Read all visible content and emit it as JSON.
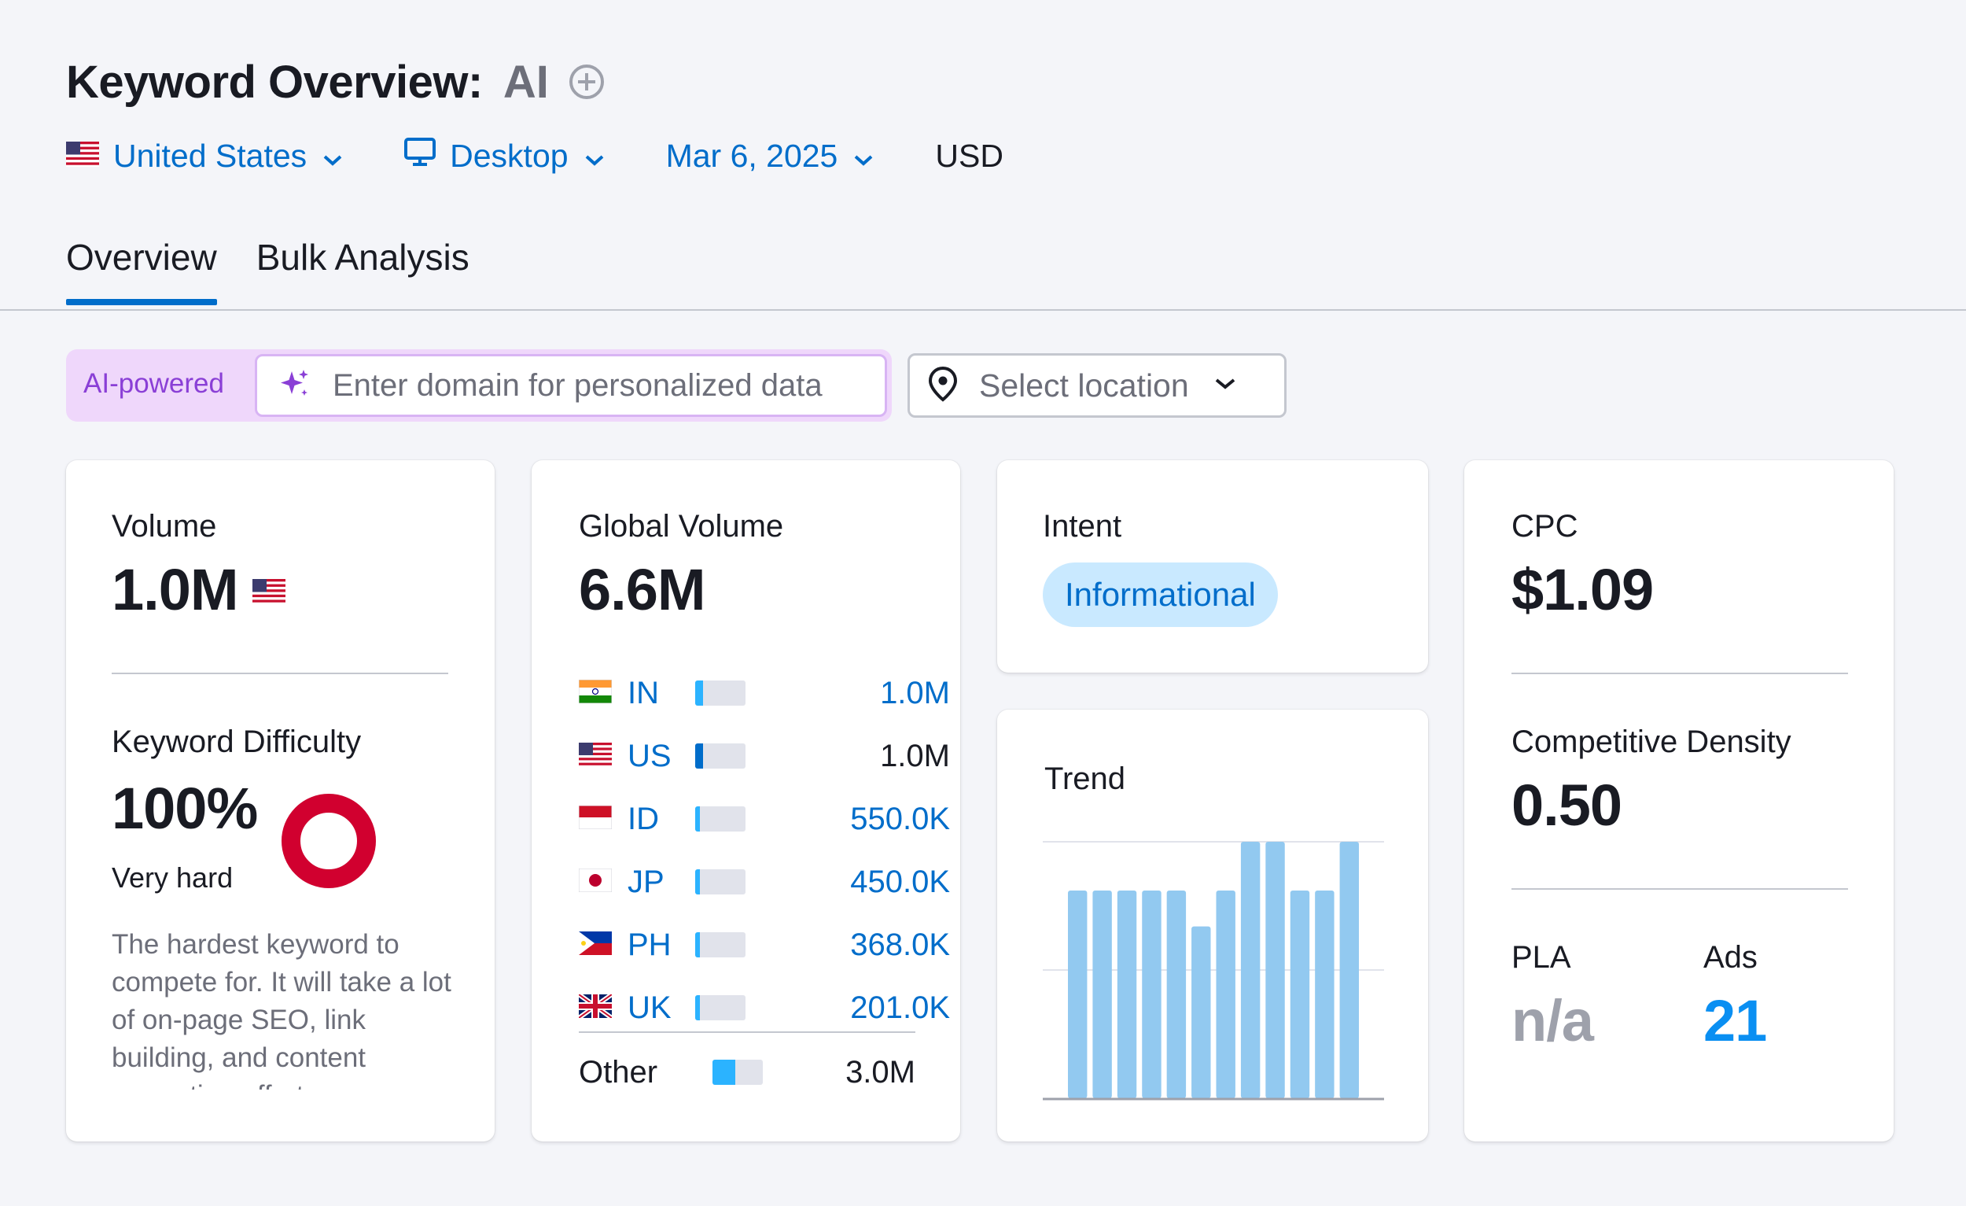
{
  "header": {
    "title": "Keyword Overview:",
    "keyword": "AI"
  },
  "filters": {
    "country": "United States",
    "device": "Desktop",
    "date": "Mar 6, 2025",
    "currency": "USD"
  },
  "tabs": [
    {
      "label": "Overview",
      "active": true
    },
    {
      "label": "Bulk Analysis",
      "active": false
    }
  ],
  "ai_search": {
    "badge": "AI-powered",
    "placeholder": "Enter domain for personalized data",
    "location_placeholder": "Select location"
  },
  "volume_card": {
    "label": "Volume",
    "value": "1.0M",
    "kd_label": "Keyword Difficulty",
    "kd_value": "100%",
    "kd_level": "Very hard",
    "kd_percent": 100,
    "kd_color": "#d1002f",
    "kd_description": "The hardest keyword to compete for. It will take a lot of on-page SEO, link building, and content promotion efforts."
  },
  "global_volume_card": {
    "label": "Global Volume",
    "value": "6.6M",
    "countries": [
      {
        "code": "IN",
        "value": "1.0M",
        "share": 0.15,
        "highlight": true
      },
      {
        "code": "US",
        "value": "1.0M",
        "share": 0.15,
        "highlight": false
      },
      {
        "code": "ID",
        "value": "550.0K",
        "share": 0.1,
        "highlight": true
      },
      {
        "code": "JP",
        "value": "450.0K",
        "share": 0.1,
        "highlight": true
      },
      {
        "code": "PH",
        "value": "368.0K",
        "share": 0.1,
        "highlight": true
      },
      {
        "code": "UK",
        "value": "201.0K",
        "share": 0.1,
        "highlight": true
      }
    ],
    "other": {
      "label": "Other",
      "value": "3.0M",
      "share": 0.45
    }
  },
  "intent_card": {
    "label": "Intent",
    "value": "Informational"
  },
  "trend_card": {
    "label": "Trend",
    "chart_data": {
      "type": "bar",
      "values": [
        0.81,
        0.81,
        0.81,
        0.81,
        0.81,
        0.67,
        0.81,
        1.0,
        1.0,
        0.81,
        0.81,
        1.0
      ],
      "ylim": [
        0,
        1
      ],
      "grid": true,
      "color": "#92c9f0"
    }
  },
  "cpc_card": {
    "label": "CPC",
    "value": "$1.09",
    "cd_label": "Competitive Density",
    "cd_value": "0.50",
    "pla_label": "PLA",
    "pla_value": "n/a",
    "ads_label": "Ads",
    "ads_value": "21"
  },
  "colors": {
    "link_blue": "#006dca",
    "accent_blue": "#0a8ff2",
    "ai_purple": "#8a3fd6"
  }
}
